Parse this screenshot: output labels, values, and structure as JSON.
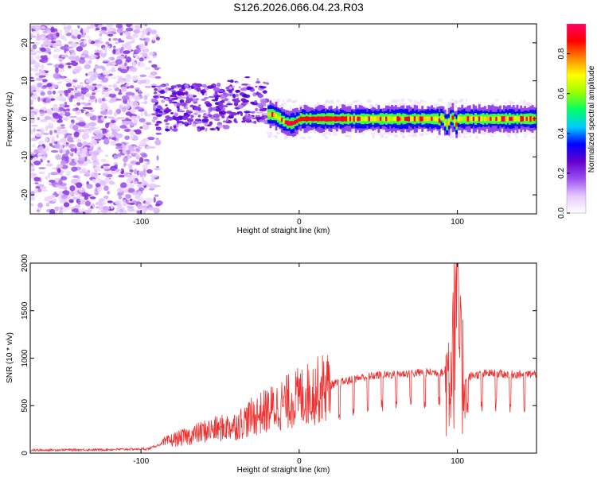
{
  "title": "S126.2026.066.04.23.R03",
  "chart_data": [
    {
      "type": "heatmap",
      "name": "spectrogram",
      "xlabel": "Height of straight line (km)",
      "ylabel": "Frequency (Hz)",
      "xlim": [
        -170,
        150
      ],
      "ylim": [
        -25,
        25
      ],
      "xticks": [
        -100,
        0,
        100
      ],
      "xtick_labels": [
        "-100",
        "0",
        "100"
      ],
      "yticks": [
        -20,
        -10,
        0,
        10,
        20
      ],
      "ytick_labels": [
        "-20",
        "-10",
        "0",
        "10",
        "20"
      ],
      "grid": false,
      "colorbar": {
        "label": "Normalized spectral amplitude",
        "range": [
          0.0,
          0.95
        ],
        "ticks": [
          0.0,
          0.2,
          0.4,
          0.6,
          0.8
        ],
        "tick_labels": [
          "0.0",
          "0.2",
          "0.4",
          "0.6",
          "0.8"
        ],
        "colors": [
          "#ffffff",
          "#e6c8ff",
          "#9a4ff0",
          "#6600cc",
          "#0000ff",
          "#00ccff",
          "#00ff66",
          "#99ff00",
          "#ffff00",
          "#ff8800",
          "#ff0000",
          "#ff0066"
        ]
      },
      "regions": [
        {
          "x_range": [
            -170,
            -95
          ],
          "description": "broadband noise, amplitude 0.0-0.1"
        },
        {
          "x_range": [
            -95,
            -20
          ],
          "description": "scattered energy near 0 to 10 Hz, amplitude 0.1-0.3"
        },
        {
          "x_range": [
            -20,
            150
          ],
          "description": "narrow line near 0 Hz, amplitude 0.2-0.9"
        }
      ]
    },
    {
      "type": "line",
      "name": "snr",
      "xlabel": "Height of straight line (km)",
      "ylabel": "SNR (10 * v/v)",
      "xlim": [
        -170,
        150
      ],
      "ylim": [
        0,
        2000
      ],
      "xticks": [
        -100,
        0,
        100
      ],
      "xtick_labels": [
        "-100",
        "0",
        "100"
      ],
      "yticks": [
        0,
        500,
        1000,
        1500,
        2000
      ],
      "ytick_labels": [
        "0",
        "500",
        "1000",
        "1500",
        "2000"
      ],
      "grid": false,
      "series": [
        {
          "name": "SNR",
          "color": "#ee3030",
          "x": [
            -170,
            -150,
            -130,
            -110,
            -95,
            -90,
            -80,
            -70,
            -60,
            -50,
            -40,
            -30,
            -20,
            -10,
            0,
            10,
            20,
            30,
            40,
            50,
            60,
            70,
            80,
            90,
            95,
            98,
            100,
            102,
            105,
            110,
            120,
            130,
            140,
            150
          ],
          "values": [
            30,
            35,
            35,
            40,
            45,
            80,
            140,
            180,
            230,
            260,
            290,
            380,
            450,
            520,
            590,
            650,
            720,
            760,
            800,
            820,
            830,
            840,
            850,
            850,
            820,
            1500,
            1950,
            900,
            780,
            820,
            840,
            830,
            830,
            830
          ]
        }
      ]
    }
  ]
}
